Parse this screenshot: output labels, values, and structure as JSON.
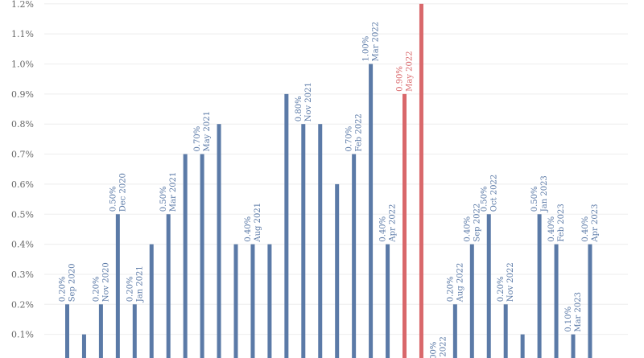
{
  "chart_data": {
    "type": "bar",
    "ylim": [
      0,
      1.2
    ],
    "yticks": [
      "0.1%",
      "0.2%",
      "0.3%",
      "0.4%",
      "0.5%",
      "0.6%",
      "0.7%",
      "0.8%",
      "0.9%",
      "1.0%",
      "1.1%",
      "1.2%"
    ],
    "grid": true,
    "colors": {
      "normal": "#5b7aa7",
      "highlight": "#d9686b"
    },
    "bars": [
      {
        "value": 0.2,
        "label_value": "0.20%",
        "label_date": "Sep 2020",
        "highlight": false
      },
      {
        "value": 0.1,
        "label_value": "",
        "label_date": "",
        "highlight": false
      },
      {
        "value": 0.2,
        "label_value": "0.20%",
        "label_date": "Nov 2020",
        "highlight": false
      },
      {
        "value": 0.5,
        "label_value": "0.50%",
        "label_date": "Dec 2020",
        "highlight": false
      },
      {
        "value": 0.2,
        "label_value": "0.20%",
        "label_date": "Jan 2021",
        "highlight": false
      },
      {
        "value": 0.4,
        "label_value": "",
        "label_date": "",
        "highlight": false
      },
      {
        "value": 0.5,
        "label_value": "0.50%",
        "label_date": "Mar 2021",
        "highlight": false
      },
      {
        "value": 0.7,
        "label_value": "",
        "label_date": "",
        "highlight": false
      },
      {
        "value": 0.7,
        "label_value": "0.70%",
        "label_date": "May 2021",
        "highlight": false
      },
      {
        "value": 0.8,
        "label_value": "",
        "label_date": "",
        "highlight": false
      },
      {
        "value": 0.4,
        "label_value": "",
        "label_date": "",
        "highlight": false
      },
      {
        "value": 0.4,
        "label_value": "0.40%",
        "label_date": "Aug 2021",
        "highlight": false
      },
      {
        "value": 0.4,
        "label_value": "",
        "label_date": "",
        "highlight": false
      },
      {
        "value": 0.9,
        "label_value": "",
        "label_date": "",
        "highlight": false
      },
      {
        "value": 0.8,
        "label_value": "0.80%",
        "label_date": "Nov 2021",
        "highlight": false
      },
      {
        "value": 0.8,
        "label_value": "",
        "label_date": "",
        "highlight": false
      },
      {
        "value": 0.6,
        "label_value": "",
        "label_date": "",
        "highlight": false
      },
      {
        "value": 0.7,
        "label_value": "0.70%",
        "label_date": "Feb 2022",
        "highlight": false
      },
      {
        "value": 1.0,
        "label_value": "1.00%",
        "label_date": "Mar 2022",
        "highlight": false
      },
      {
        "value": 0.4,
        "label_value": "0.40%",
        "label_date": "Apr 2022",
        "highlight": false
      },
      {
        "value": 0.9,
        "label_value": "0.90%",
        "label_date": "May 2022",
        "highlight": true
      },
      {
        "value": 1.2,
        "label_value": "",
        "label_date": "",
        "highlight": true
      },
      {
        "value": 0.0,
        "label_value": ".00%",
        "label_date": "l 2022",
        "highlight": false
      },
      {
        "value": 0.2,
        "label_value": "0.20%",
        "label_date": "Aug 2022",
        "highlight": false
      },
      {
        "value": 0.4,
        "label_value": "0.40%",
        "label_date": "Sep 2022",
        "highlight": false
      },
      {
        "value": 0.5,
        "label_value": "0.50%",
        "label_date": "Oct 2022",
        "highlight": false
      },
      {
        "value": 0.2,
        "label_value": "0.20%",
        "label_date": "Nov 2022",
        "highlight": false
      },
      {
        "value": 0.1,
        "label_value": "",
        "label_date": "",
        "highlight": false
      },
      {
        "value": 0.5,
        "label_value": "0.50%",
        "label_date": "Jan 2023",
        "highlight": false
      },
      {
        "value": 0.4,
        "label_value": "0.40%",
        "label_date": "Feb 2023",
        "highlight": false
      },
      {
        "value": 0.1,
        "label_value": "0.10%",
        "label_date": "Mar 2023",
        "highlight": false
      },
      {
        "value": 0.4,
        "label_value": "0.40%",
        "label_date": "Apr 2023",
        "highlight": false
      }
    ]
  }
}
